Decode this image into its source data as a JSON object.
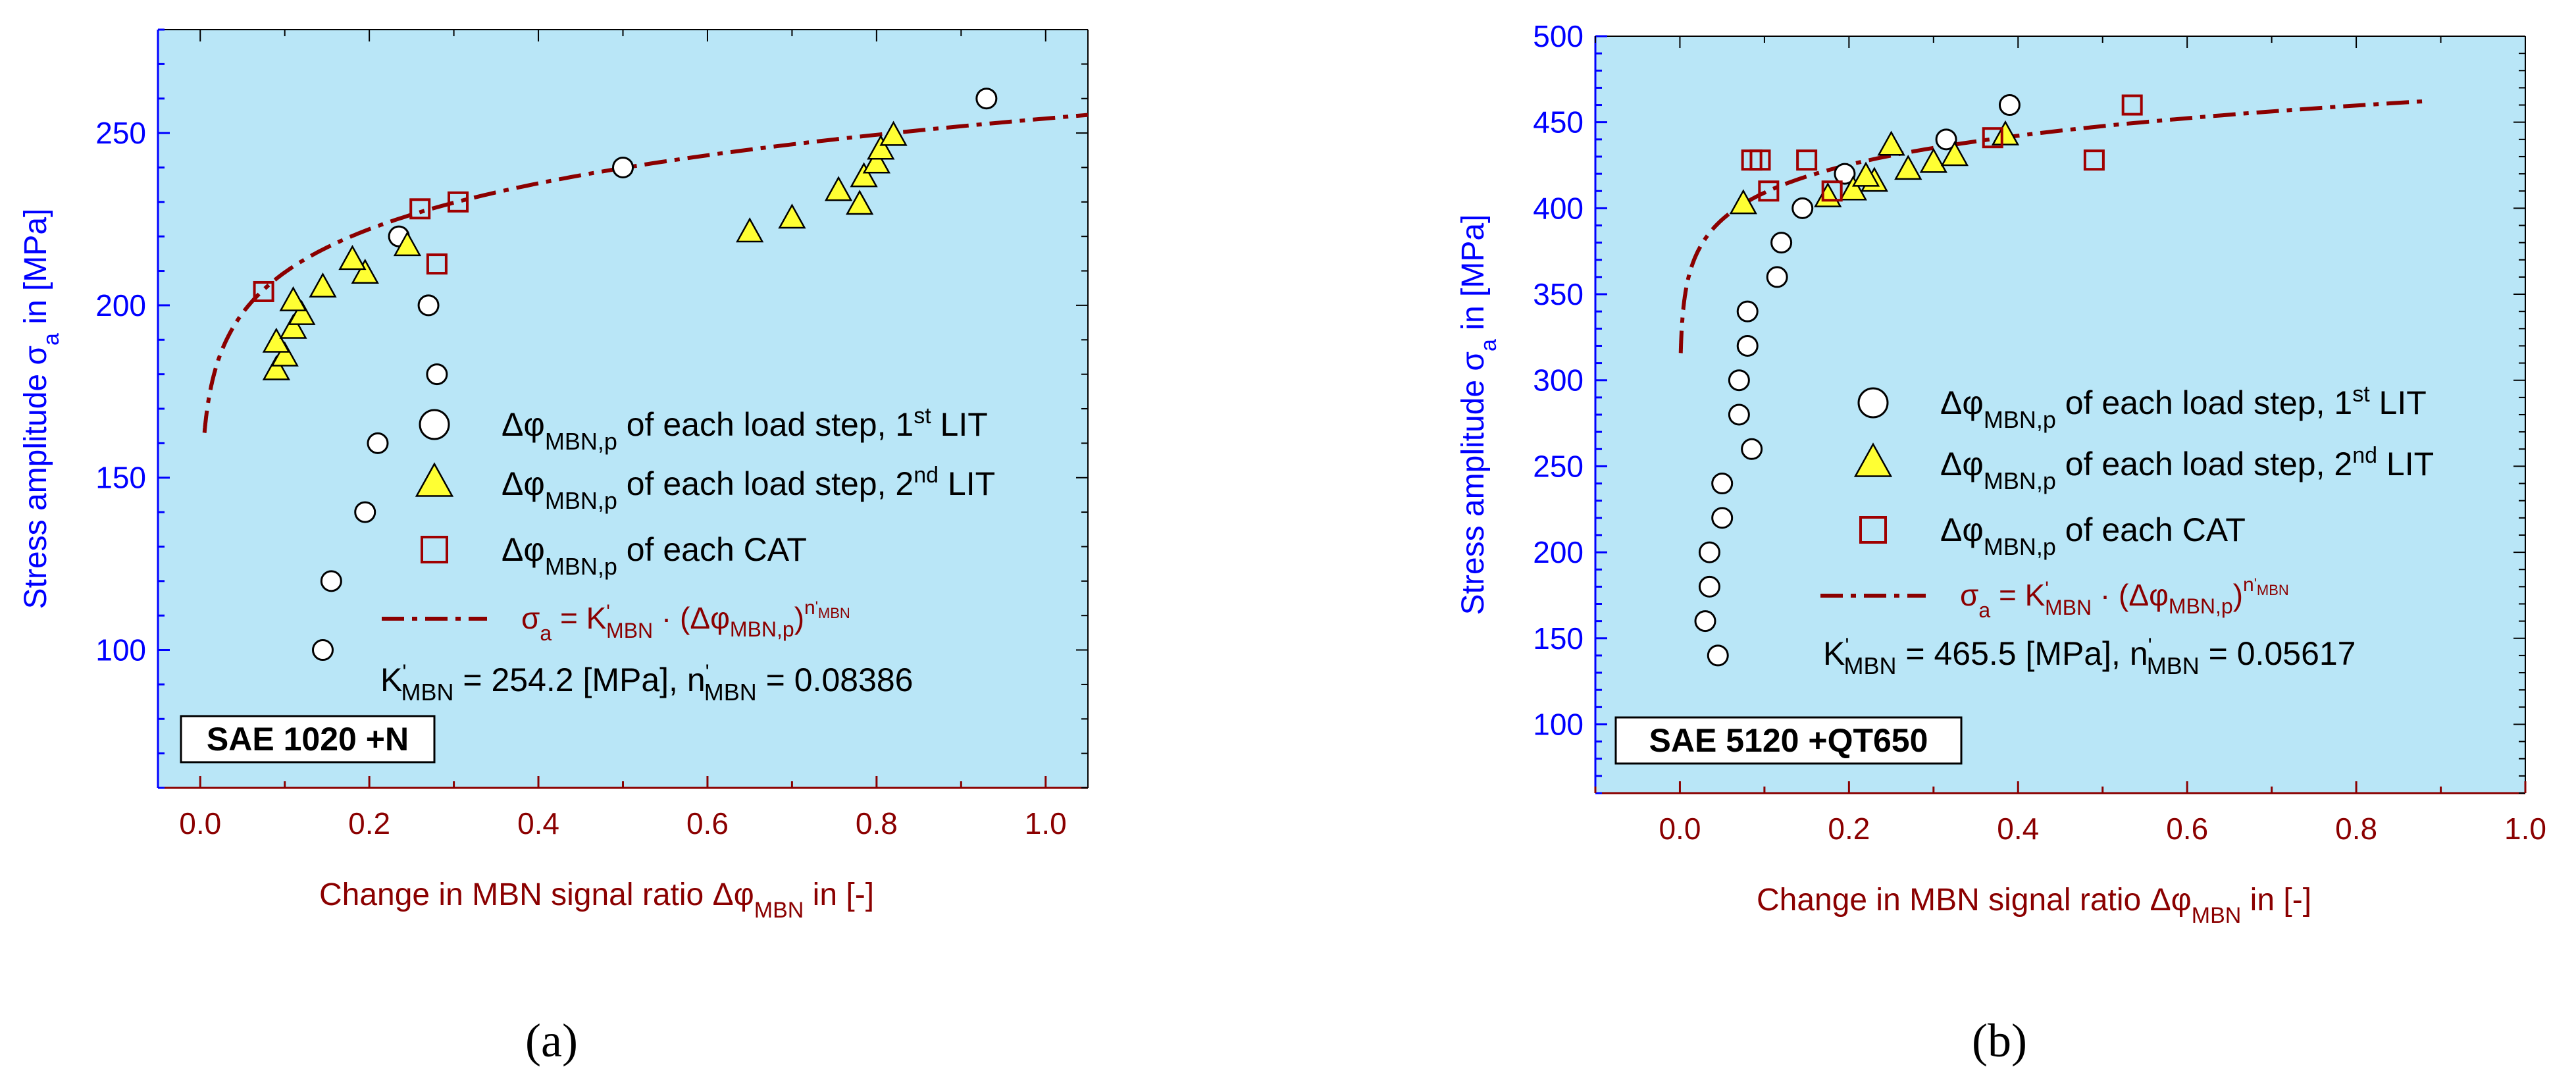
{
  "chart_data": [
    {
      "type": "scatter",
      "panel_label": "a",
      "material_label": "SAE 1020 +N",
      "xlabel": "Change in MBN signal ratio Δφ_MBN in [-]",
      "ylabel": "Stress amplitude σ_a in [MPa]",
      "xlim": [
        -0.05,
        1.05
      ],
      "ylim": [
        60,
        280
      ],
      "x_ticks": [
        "0.0",
        "0.2",
        "0.4",
        "0.6",
        "0.8",
        "1.0"
      ],
      "x_tick_values": [
        0,
        0.2,
        0.4,
        0.6,
        0.8,
        1.0
      ],
      "y_ticks": [
        "100",
        "150",
        "200",
        "250"
      ],
      "y_tick_values": [
        100,
        150,
        200,
        250
      ],
      "series": [
        {
          "name": "Δφ_MBN,p of each load step, 1st LIT",
          "marker": "circle",
          "points": [
            [
              0.145,
              100
            ],
            [
              0.155,
              120
            ],
            [
              0.195,
              140
            ],
            [
              0.21,
              160
            ],
            [
              0.28,
              180
            ],
            [
              0.27,
              200
            ],
            [
              0.235,
              220
            ],
            [
              0.5,
              240
            ],
            [
              0.93,
              260
            ]
          ]
        },
        {
          "name": "Δφ_MBN,p of each load step, 2nd LIT",
          "marker": "triangle",
          "points": [
            [
              0.09,
              181
            ],
            [
              0.1,
              185
            ],
            [
              0.09,
              189
            ],
            [
              0.11,
              193
            ],
            [
              0.12,
              197
            ],
            [
              0.11,
              201
            ],
            [
              0.145,
              205
            ],
            [
              0.195,
              209
            ],
            [
              0.18,
              213
            ],
            [
              0.245,
              217
            ],
            [
              0.65,
              221
            ],
            [
              0.7,
              225
            ],
            [
              0.78,
              229
            ],
            [
              0.755,
              233
            ],
            [
              0.785,
              237
            ],
            [
              0.8,
              241
            ],
            [
              0.805,
              245
            ],
            [
              0.82,
              249
            ]
          ]
        },
        {
          "name": "Δφ_MBN,p of each CAT",
          "marker": "square",
          "points": [
            [
              0.075,
              204
            ],
            [
              0.28,
              212
            ],
            [
              0.26,
              228
            ],
            [
              0.305,
              230
            ]
          ]
        },
        {
          "name": "σa = K'MBN · (Δφ_MBN,p)^n'MBN",
          "type": "power_fit",
          "K": 254.2,
          "n": 0.08386,
          "x_range": [
            0.005,
            1.05
          ]
        }
      ],
      "fit_equation": {
        "prefix": "σ",
        "a": "a",
        "eq1": " = K",
        "prime": "'",
        "mbn": "MBN",
        "dot": " · (Δφ",
        "mbnp": "MBN,p",
        "paren": ")",
        "n": "n",
        "nsub_prime": "'",
        "nsub": "MBN"
      },
      "params": {
        "k_label": "K",
        "k_prime": "'",
        "k_sub": "MBN",
        "k_value": " = 254.2 [MPa],  n",
        "n_prime": "'",
        "n_sub": "MBN",
        "n_value": " = 0.08386"
      }
    },
    {
      "type": "scatter",
      "panel_label": "b",
      "material_label": "SAE 5120 +QT650",
      "xlabel": "Change in MBN signal ratio Δφ_MBN in [-]",
      "ylabel": "Stress amplitude σ_a in [MPa]",
      "xlim": [
        -0.1,
        1.0
      ],
      "ylim": [
        60,
        500
      ],
      "x_ticks": [
        "0.0",
        "0.2",
        "0.4",
        "0.6",
        "0.8",
        "1.0"
      ],
      "x_tick_values": [
        0,
        0.2,
        0.4,
        0.6,
        0.8,
        1.0
      ],
      "y_ticks": [
        "100",
        "150",
        "200",
        "250",
        "300",
        "350",
        "400",
        "450",
        "500"
      ],
      "y_tick_values": [
        100,
        150,
        200,
        250,
        300,
        350,
        400,
        450,
        500
      ],
      "series": [
        {
          "name": "Δφ_MBN,p of each load step, 1st LIT",
          "marker": "circle",
          "points": [
            [
              0.045,
              140
            ],
            [
              0.03,
              160
            ],
            [
              0.035,
              180
            ],
            [
              0.035,
              200
            ],
            [
              0.05,
              220
            ],
            [
              0.05,
              240
            ],
            [
              0.085,
              260
            ],
            [
              0.07,
              280
            ],
            [
              0.07,
              300
            ],
            [
              0.08,
              320
            ],
            [
              0.08,
              340
            ],
            [
              0.115,
              360
            ],
            [
              0.12,
              380
            ],
            [
              0.145,
              400
            ],
            [
              0.195,
              420
            ],
            [
              0.315,
              440
            ],
            [
              0.39,
              460
            ]
          ]
        },
        {
          "name": "Δφ_MBN,p of each load step, 2nd LIT",
          "marker": "triangle",
          "points": [
            [
              0.075,
              402
            ],
            [
              0.175,
              406
            ],
            [
              0.205,
              410
            ],
            [
              0.23,
              415
            ],
            [
              0.22,
              418
            ],
            [
              0.27,
              422
            ],
            [
              0.3,
              426
            ],
            [
              0.325,
              430
            ],
            [
              0.25,
              436
            ],
            [
              0.385,
              442
            ]
          ]
        },
        {
          "name": "Δφ_MBN,p of each CAT",
          "marker": "square",
          "points": [
            [
              0.105,
              410
            ],
            [
              0.18,
              410
            ],
            [
              0.085,
              428
            ],
            [
              0.095,
              428
            ],
            [
              0.15,
              428
            ],
            [
              0.49,
              428
            ],
            [
              0.37,
              441
            ],
            [
              0.535,
              460
            ]
          ]
        },
        {
          "name": "σa = K'MBN · (Δφ_MBN,p)^n'MBN",
          "type": "power_fit",
          "K": 465.5,
          "n": 0.05617,
          "x_range": [
            0.001,
            0.88
          ]
        }
      ],
      "fit_equation": {
        "prefix": "σ",
        "a": "a",
        "eq1": " = K",
        "prime": "'",
        "mbn": "MBN",
        "dot": " · (Δφ",
        "mbnp": "MBN,p",
        "paren": ")",
        "n": "n",
        "nsub_prime": "'",
        "nsub": "MBN"
      },
      "params": {
        "k_label": "K",
        "k_prime": "'",
        "k_sub": "MBN",
        "k_value": " = 465.5 [MPa],  n",
        "n_prime": "'",
        "n_sub": "MBN",
        "n_value": " = 0.05617"
      }
    }
  ],
  "legend_text": {
    "delta_phi": "Δφ",
    "sub_p": "MBN,p",
    "load_step": " of each load step, 1",
    "st": "st",
    "lit": " LIT",
    "load_step2": " of each load step, 2",
    "nd": "nd",
    "cat": " of each CAT"
  },
  "axis_text": {
    "ylabel_main": "Stress amplitude σ",
    "ylabel_sub": "a",
    "ylabel_tail": " in [MPa]",
    "xlabel_main": "Change in MBN signal ratio Δφ",
    "xlabel_sub": "MBN",
    "xlabel_tail": " in [-]"
  },
  "captions": {
    "a": "(a)",
    "b": "(b)"
  },
  "colors": {
    "plot_bg": "#b9e6f7",
    "axis_left": "#0000ff",
    "axis_bottom": "#8b0000",
    "fit_line": "#8b0000",
    "triangle_fill": "#ffff33",
    "square_stroke": "#a00000",
    "text": "#000000"
  }
}
